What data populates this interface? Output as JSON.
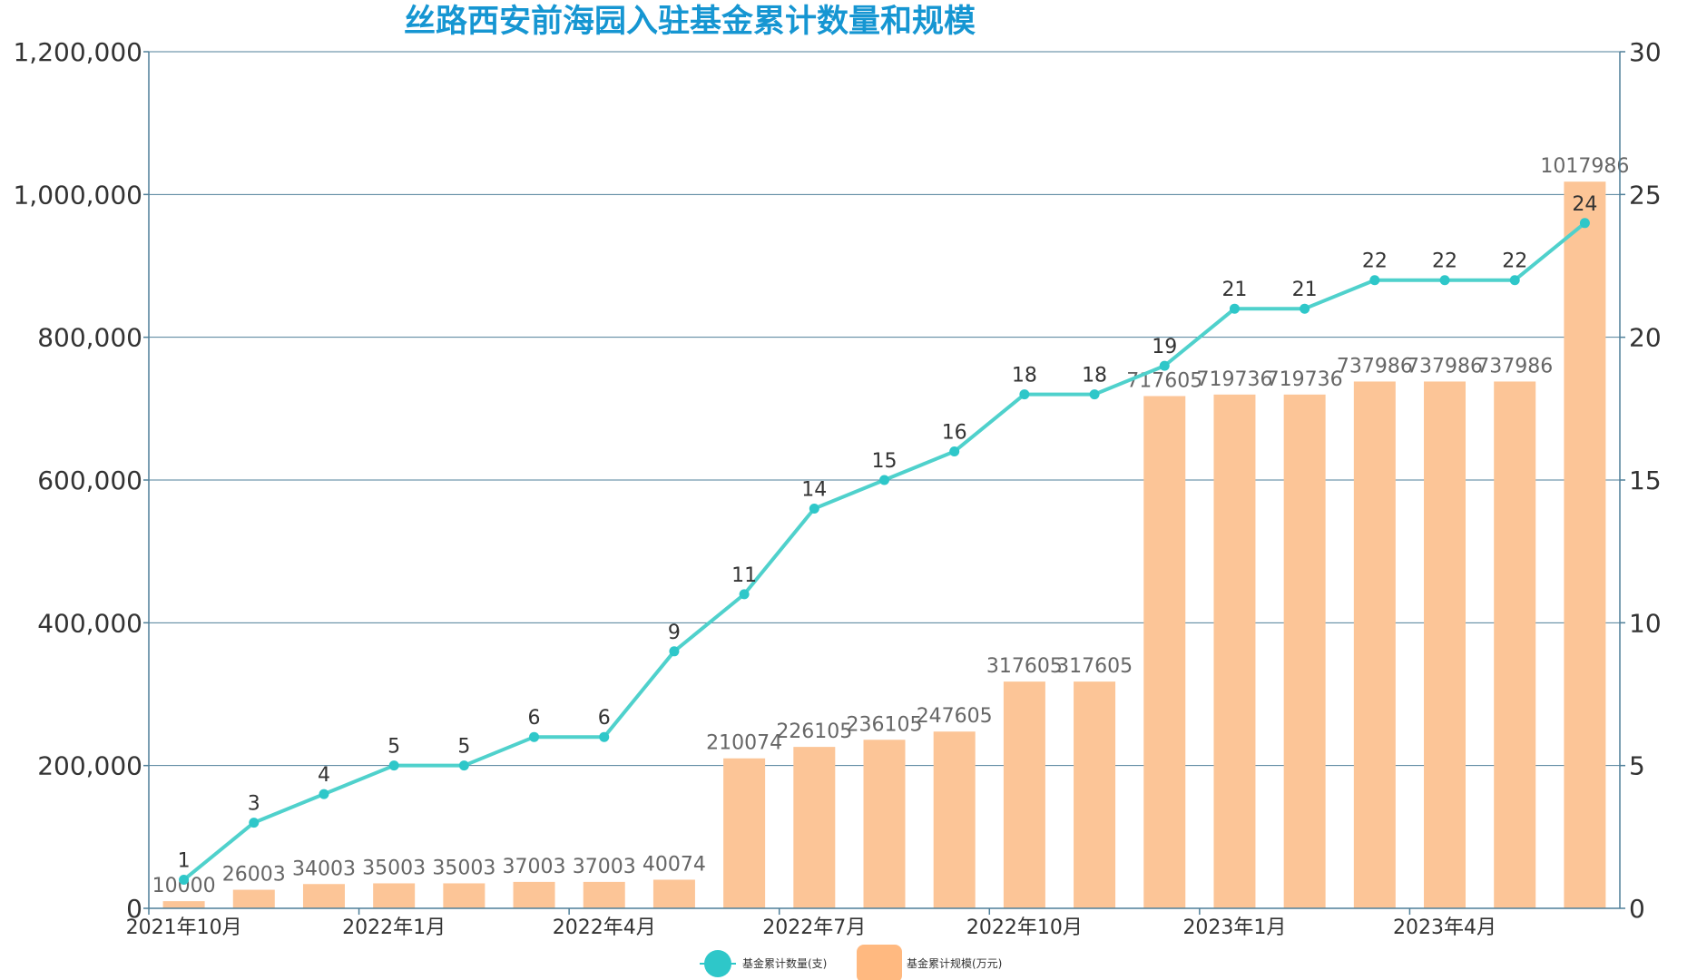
{
  "colors": {
    "title": "#1696d2",
    "bar": "#fcc597",
    "line": "#4fd1cc",
    "line_legend": "#2ec7c9",
    "bar_legend": "#ffb980",
    "grid": "#4f7f99",
    "axis": "#4f7f99"
  },
  "chart_data": {
    "type": "bar",
    "title": "丝路西安前海园入驻基金累计数量和规模",
    "x": [
      "2021年10月",
      "2021年11月",
      "2021年12月",
      "2022年1月",
      "2022年2月",
      "2022年3月",
      "2022年4月",
      "2022年5月",
      "2022年6月",
      "2022年7月",
      "2022年8月",
      "2022年9月",
      "2022年10月",
      "2022年11月",
      "2022年12月",
      "2023年1月",
      "2023年2月",
      "2023年3月",
      "2023年4月",
      "2023年5月",
      "2023年6月"
    ],
    "x_tick_labels": [
      "2021年10月",
      "2022年1月",
      "2022年4月",
      "2022年7月",
      "2022年10月",
      "2023年1月",
      "2023年4月"
    ],
    "series": [
      {
        "name": "基金累计规模(万元)",
        "type": "bar",
        "axis": "left",
        "values": [
          10000,
          26003,
          34003,
          35003,
          35003,
          37003,
          37003,
          40074,
          210074,
          226105,
          236105,
          247605,
          317605,
          317605,
          717605,
          719736,
          719736,
          737986,
          737986,
          737986,
          1017986
        ]
      },
      {
        "name": "基金累计数量(支)",
        "type": "line",
        "axis": "right",
        "values": [
          1,
          3,
          4,
          5,
          5,
          6,
          6,
          9,
          11,
          14,
          15,
          16,
          18,
          18,
          19,
          21,
          21,
          22,
          22,
          22,
          24
        ]
      }
    ],
    "y_left": {
      "ylim": [
        0,
        1200000
      ],
      "ticks": [
        "0",
        "200,000",
        "400,000",
        "600,000",
        "800,000",
        "1,000,000",
        "1,200,000"
      ]
    },
    "y_right": {
      "ylim": [
        0,
        30
      ],
      "ticks": [
        "0",
        "5",
        "10",
        "15",
        "20",
        "25",
        "30"
      ]
    },
    "grid": true,
    "legend_position": "bottom-center"
  }
}
